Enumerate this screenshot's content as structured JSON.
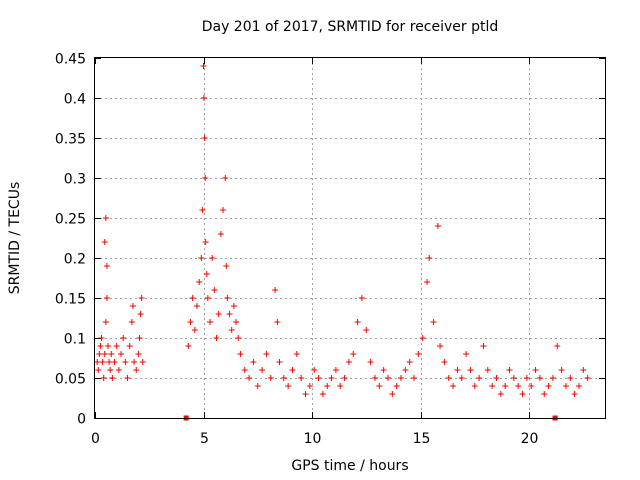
{
  "chart_data": {
    "type": "scatter",
    "title": "Day 201 of 2017, SRMTID for receiver ptld",
    "xlabel": "GPS time / hours",
    "ylabel": "SRMTID / TECUs",
    "xlim": [
      0,
      23.5
    ],
    "ylim": [
      0,
      0.45
    ],
    "grid": true,
    "xticks": [
      0,
      5,
      10,
      15,
      20
    ],
    "xtick_labels": [
      "0",
      "5",
      "10",
      "15",
      "20"
    ],
    "yticks": [
      0,
      0.05,
      0.1,
      0.15,
      0.2,
      0.25,
      0.3,
      0.35,
      0.4,
      0.45
    ],
    "ytick_labels": [
      "0",
      "0.05",
      "0.1",
      "0.15",
      "0.2",
      "0.25",
      "0.3",
      "0.35",
      "0.4",
      "0.45"
    ],
    "marker": "+",
    "color": "#ff0000",
    "series": [
      {
        "name": "ptld",
        "points": [
          [
            0.1,
            0.07
          ],
          [
            0.15,
            0.06
          ],
          [
            0.2,
            0.08
          ],
          [
            0.25,
            0.09
          ],
          [
            0.3,
            0.1
          ],
          [
            0.35,
            0.07
          ],
          [
            0.4,
            0.05
          ],
          [
            0.45,
            0.08
          ],
          [
            0.5,
            0.12
          ],
          [
            0.55,
            0.19
          ],
          [
            0.5,
            0.25
          ],
          [
            0.45,
            0.22
          ],
          [
            0.55,
            0.15
          ],
          [
            0.6,
            0.09
          ],
          [
            0.65,
            0.07
          ],
          [
            0.7,
            0.06
          ],
          [
            0.75,
            0.08
          ],
          [
            0.8,
            0.05
          ],
          [
            0.9,
            0.07
          ],
          [
            1.0,
            0.09
          ],
          [
            1.1,
            0.06
          ],
          [
            1.2,
            0.08
          ],
          [
            1.3,
            0.1
          ],
          [
            1.4,
            0.07
          ],
          [
            1.5,
            0.05
          ],
          [
            1.6,
            0.09
          ],
          [
            1.7,
            0.12
          ],
          [
            1.75,
            0.14
          ],
          [
            1.8,
            0.07
          ],
          [
            1.9,
            0.06
          ],
          [
            2.0,
            0.08
          ],
          [
            2.05,
            0.1
          ],
          [
            2.1,
            0.13
          ],
          [
            2.15,
            0.15
          ],
          [
            2.2,
            0.07
          ],
          [
            4.3,
            0.09
          ],
          [
            4.4,
            0.12
          ],
          [
            4.5,
            0.15
          ],
          [
            4.6,
            0.11
          ],
          [
            4.7,
            0.14
          ],
          [
            4.8,
            0.17
          ],
          [
            4.9,
            0.2
          ],
          [
            4.95,
            0.26
          ],
          [
            5.0,
            0.44
          ],
          [
            5.02,
            0.4
          ],
          [
            5.05,
            0.35
          ],
          [
            5.08,
            0.3
          ],
          [
            5.1,
            0.22
          ],
          [
            5.15,
            0.18
          ],
          [
            5.2,
            0.15
          ],
          [
            5.3,
            0.12
          ],
          [
            5.4,
            0.2
          ],
          [
            5.5,
            0.16
          ],
          [
            5.6,
            0.1
          ],
          [
            5.7,
            0.13
          ],
          [
            5.8,
            0.23
          ],
          [
            5.9,
            0.26
          ],
          [
            6.0,
            0.3
          ],
          [
            6.05,
            0.19
          ],
          [
            6.1,
            0.15
          ],
          [
            6.2,
            0.13
          ],
          [
            6.3,
            0.11
          ],
          [
            6.4,
            0.14
          ],
          [
            6.5,
            0.12
          ],
          [
            6.6,
            0.1
          ],
          [
            6.7,
            0.08
          ],
          [
            6.9,
            0.06
          ],
          [
            7.1,
            0.05
          ],
          [
            7.3,
            0.07
          ],
          [
            7.5,
            0.04
          ],
          [
            7.7,
            0.06
          ],
          [
            7.9,
            0.08
          ],
          [
            8.1,
            0.05
          ],
          [
            8.3,
            0.16
          ],
          [
            8.4,
            0.12
          ],
          [
            8.5,
            0.07
          ],
          [
            8.7,
            0.05
          ],
          [
            8.9,
            0.04
          ],
          [
            9.1,
            0.06
          ],
          [
            9.3,
            0.08
          ],
          [
            9.5,
            0.05
          ],
          [
            9.7,
            0.03
          ],
          [
            9.9,
            0.04
          ],
          [
            10.1,
            0.06
          ],
          [
            10.3,
            0.05
          ],
          [
            10.5,
            0.03
          ],
          [
            10.7,
            0.04
          ],
          [
            10.9,
            0.05
          ],
          [
            11.1,
            0.06
          ],
          [
            11.3,
            0.04
          ],
          [
            11.5,
            0.05
          ],
          [
            11.7,
            0.07
          ],
          [
            11.9,
            0.08
          ],
          [
            12.1,
            0.12
          ],
          [
            12.3,
            0.15
          ],
          [
            12.5,
            0.11
          ],
          [
            12.7,
            0.07
          ],
          [
            12.9,
            0.05
          ],
          [
            13.1,
            0.04
          ],
          [
            13.3,
            0.06
          ],
          [
            13.5,
            0.05
          ],
          [
            13.7,
            0.03
          ],
          [
            13.9,
            0.04
          ],
          [
            14.1,
            0.05
          ],
          [
            14.3,
            0.06
          ],
          [
            14.5,
            0.07
          ],
          [
            14.7,
            0.05
          ],
          [
            14.9,
            0.08
          ],
          [
            15.1,
            0.1
          ],
          [
            15.3,
            0.17
          ],
          [
            15.4,
            0.2
          ],
          [
            15.6,
            0.12
          ],
          [
            15.8,
            0.24
          ],
          [
            15.9,
            0.09
          ],
          [
            16.1,
            0.07
          ],
          [
            16.3,
            0.05
          ],
          [
            16.5,
            0.04
          ],
          [
            16.7,
            0.06
          ],
          [
            16.9,
            0.05
          ],
          [
            17.1,
            0.08
          ],
          [
            17.3,
            0.06
          ],
          [
            17.5,
            0.04
          ],
          [
            17.7,
            0.05
          ],
          [
            17.9,
            0.09
          ],
          [
            18.1,
            0.06
          ],
          [
            18.3,
            0.04
          ],
          [
            18.5,
            0.05
          ],
          [
            18.7,
            0.03
          ],
          [
            18.9,
            0.04
          ],
          [
            19.1,
            0.06
          ],
          [
            19.3,
            0.05
          ],
          [
            19.5,
            0.04
          ],
          [
            19.7,
            0.03
          ],
          [
            19.9,
            0.05
          ],
          [
            20.1,
            0.04
          ],
          [
            20.3,
            0.06
          ],
          [
            20.5,
            0.05
          ],
          [
            20.7,
            0.03
          ],
          [
            20.9,
            0.04
          ],
          [
            21.1,
            0.05
          ],
          [
            21.3,
            0.09
          ],
          [
            21.5,
            0.06
          ],
          [
            21.7,
            0.04
          ],
          [
            21.9,
            0.05
          ],
          [
            22.1,
            0.03
          ],
          [
            22.3,
            0.04
          ],
          [
            22.5,
            0.06
          ],
          [
            22.7,
            0.05
          ]
        ]
      }
    ],
    "gap_markers_x": [
      4.2,
      21.2
    ]
  }
}
